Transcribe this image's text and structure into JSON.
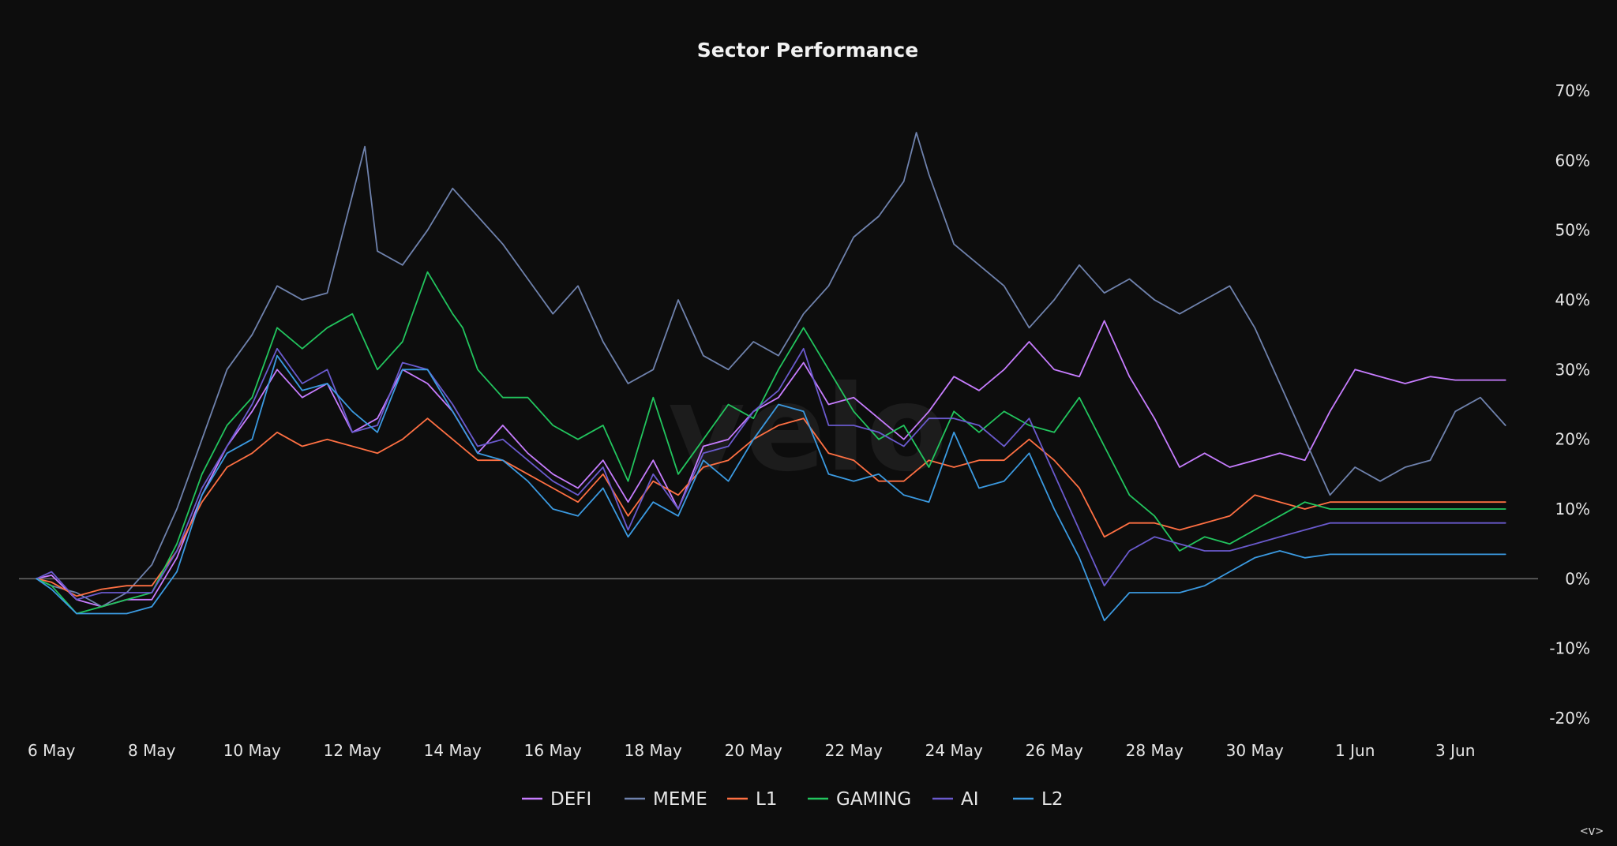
{
  "chart_data": {
    "type": "line",
    "title": "Sector Performance",
    "xlabel": "",
    "ylabel": "",
    "y_axis_position": "right",
    "ylim": [
      -20,
      70
    ],
    "yticks": [
      -20,
      -10,
      0,
      10,
      20,
      30,
      40,
      50,
      60,
      70
    ],
    "ytick_labels": [
      "-20%",
      "-10%",
      "0%",
      "10%",
      "20%",
      "30%",
      "40%",
      "50%",
      "60%",
      "70%"
    ],
    "xlim": [
      5.35,
      35.65
    ],
    "xticks": [
      6,
      8,
      10,
      12,
      14,
      16,
      18,
      20,
      22,
      24,
      26,
      28,
      30,
      32,
      34
    ],
    "xtick_labels": [
      "6 May",
      "8 May",
      "10 May",
      "12 May",
      "14 May",
      "16 May",
      "18 May",
      "20 May",
      "22 May",
      "24 May",
      "26 May",
      "28 May",
      "30 May",
      "1 Jun",
      "3 Jun"
    ],
    "grid": false,
    "zero_line": true,
    "legend_position": "bottom-center",
    "watermark": "velo",
    "series": [
      {
        "name": "DEFI",
        "color": "#c77dff",
        "x": [
          5.7,
          6.0,
          6.5,
          7.0,
          7.5,
          8.0,
          8.5,
          9.0,
          9.5,
          10.0,
          10.5,
          11.0,
          11.5,
          12.0,
          12.5,
          13.0,
          13.5,
          14.0,
          14.5,
          15.0,
          15.5,
          16.0,
          16.5,
          17.0,
          17.5,
          18.0,
          18.5,
          19.0,
          19.5,
          20.0,
          20.5,
          21.0,
          21.5,
          22.0,
          22.5,
          23.0,
          23.5,
          24.0,
          24.5,
          25.0,
          25.5,
          26.0,
          26.5,
          27.0,
          27.5,
          28.0,
          28.5,
          29.0,
          29.5,
          30.0,
          30.5,
          31.0,
          31.5,
          32.0,
          32.5,
          33.0,
          33.5,
          34.0,
          34.5,
          35.0
        ],
        "values": [
          0,
          0.5,
          -3,
          -4,
          -3,
          -3,
          3,
          12,
          19,
          24,
          30,
          26,
          28,
          21,
          23,
          30,
          28,
          24,
          18,
          22,
          18,
          15,
          13,
          17,
          11,
          17,
          10,
          19,
          20,
          24,
          26,
          31,
          25,
          26,
          23,
          20,
          24,
          29,
          27,
          30,
          34,
          30,
          29,
          37,
          29,
          23,
          16,
          18,
          16,
          17,
          18,
          17,
          24,
          30,
          29,
          28,
          29,
          28.5,
          28.5,
          28.5
        ]
      },
      {
        "name": "MEME",
        "color": "#6f82ad",
        "x": [
          5.7,
          6.0,
          6.5,
          7.0,
          7.5,
          8.0,
          8.5,
          9.0,
          9.5,
          10.0,
          10.5,
          11.0,
          11.5,
          12.0,
          12.25,
          12.5,
          13.0,
          13.5,
          14.0,
          14.25,
          14.5,
          15.0,
          15.5,
          16.0,
          16.5,
          17.0,
          17.5,
          18.0,
          18.5,
          19.0,
          19.5,
          20.0,
          20.5,
          21.0,
          21.5,
          22.0,
          22.5,
          23.0,
          23.25,
          23.5,
          24.0,
          24.5,
          25.0,
          25.5,
          26.0,
          26.5,
          27.0,
          27.5,
          28.0,
          28.5,
          29.0,
          29.5,
          30.0,
          30.5,
          31.0,
          31.5,
          32.0,
          32.5,
          33.0,
          33.5,
          34.0,
          34.5,
          35.0
        ],
        "values": [
          0,
          -1,
          -2,
          -4,
          -2,
          2,
          10,
          20,
          30,
          35,
          42,
          40,
          41,
          55,
          62,
          47,
          45,
          50,
          56,
          54,
          52,
          48,
          43,
          38,
          42,
          34,
          28,
          30,
          40,
          32,
          30,
          34,
          32,
          38,
          42,
          49,
          52,
          57,
          64,
          58,
          48,
          45,
          42,
          36,
          40,
          45,
          41,
          43,
          40,
          38,
          40,
          42,
          36,
          28,
          20,
          12,
          16,
          14,
          16,
          17,
          24,
          26,
          22
        ]
      },
      {
        "name": "L1",
        "color": "#ff7043",
        "x": [
          5.7,
          6.0,
          6.5,
          7.0,
          7.5,
          8.0,
          8.5,
          9.0,
          9.5,
          10.0,
          10.5,
          11.0,
          11.5,
          12.0,
          12.5,
          13.0,
          13.5,
          14.0,
          14.5,
          15.0,
          15.5,
          16.0,
          16.5,
          17.0,
          17.5,
          18.0,
          18.5,
          19.0,
          19.5,
          20.0,
          20.5,
          21.0,
          21.5,
          22.0,
          22.5,
          23.0,
          23.5,
          24.0,
          24.5,
          25.0,
          25.5,
          26.0,
          26.5,
          27.0,
          27.5,
          28.0,
          28.5,
          29.0,
          29.5,
          30.0,
          30.5,
          31.0,
          31.5,
          32.0,
          32.5,
          33.0,
          33.5,
          34.0,
          34.5,
          35.0
        ],
        "values": [
          0,
          -0.5,
          -2.5,
          -1.5,
          -1,
          -1,
          4,
          11,
          16,
          18,
          21,
          19,
          20,
          19,
          18,
          20,
          23,
          20,
          17,
          17,
          15,
          13,
          11,
          15,
          9,
          14,
          12,
          16,
          17,
          20,
          22,
          23,
          18,
          17,
          14,
          14,
          17,
          16,
          17,
          17,
          20,
          17,
          13,
          6,
          8,
          8,
          7,
          8,
          9,
          12,
          11,
          10,
          11,
          11,
          11,
          11,
          11,
          11,
          11,
          11
        ]
      },
      {
        "name": "GAMING",
        "color": "#22c55e",
        "x": [
          5.7,
          6.0,
          6.5,
          7.0,
          7.5,
          8.0,
          8.5,
          9.0,
          9.5,
          10.0,
          10.5,
          11.0,
          11.5,
          12.0,
          12.5,
          13.0,
          13.5,
          14.0,
          14.2,
          14.5,
          15.0,
          15.5,
          16.0,
          16.5,
          17.0,
          17.5,
          18.0,
          18.5,
          19.0,
          19.5,
          20.0,
          20.5,
          21.0,
          21.5,
          22.0,
          22.5,
          23.0,
          23.5,
          24.0,
          24.5,
          25.0,
          25.5,
          26.0,
          26.5,
          27.0,
          27.5,
          28.0,
          28.5,
          29.0,
          29.5,
          30.0,
          30.5,
          31.0,
          31.5,
          32.0,
          32.5,
          33.0,
          33.5,
          34.0,
          34.5,
          35.0
        ],
        "values": [
          0,
          -1,
          -5,
          -4,
          -3,
          -2,
          5,
          15,
          22,
          26,
          36,
          33,
          36,
          38,
          30,
          34,
          44,
          38,
          36,
          30,
          26,
          26,
          22,
          20,
          22,
          14,
          26,
          15,
          20,
          25,
          23,
          30,
          36,
          30,
          24,
          20,
          22,
          16,
          24,
          21,
          24,
          22,
          21,
          26,
          19,
          12,
          9,
          4,
          6,
          5,
          7,
          9,
          11,
          10,
          10,
          10,
          10,
          10,
          10,
          10,
          10
        ]
      },
      {
        "name": "AI",
        "color": "#6a5acd",
        "x": [
          5.7,
          6.0,
          6.5,
          7.0,
          7.5,
          8.0,
          8.5,
          9.0,
          9.5,
          10.0,
          10.5,
          11.0,
          11.5,
          12.0,
          12.5,
          13.0,
          13.5,
          14.0,
          14.5,
          15.0,
          15.5,
          16.0,
          16.5,
          17.0,
          17.5,
          18.0,
          18.5,
          19.0,
          19.5,
          20.0,
          20.5,
          21.0,
          21.5,
          22.0,
          22.5,
          23.0,
          23.5,
          24.0,
          24.5,
          25.0,
          25.5,
          26.0,
          26.5,
          27.0,
          27.5,
          28.0,
          28.5,
          29.0,
          29.5,
          30.0,
          30.5,
          31.0,
          31.5,
          32.0,
          32.5,
          33.0,
          33.5,
          34.0,
          34.5,
          35.0
        ],
        "values": [
          0,
          1,
          -3,
          -2,
          -2,
          -2,
          4,
          13,
          19,
          25,
          33,
          28,
          30,
          21,
          22,
          31,
          30,
          25,
          19,
          20,
          17,
          14,
          12,
          16,
          7,
          15,
          10,
          18,
          19,
          24,
          27,
          33,
          22,
          22,
          21,
          19,
          23,
          23,
          22,
          19,
          23,
          15,
          7,
          -1,
          4,
          6,
          5,
          4,
          4,
          5,
          6,
          7,
          8,
          8,
          8,
          8,
          8,
          8,
          8,
          8
        ]
      },
      {
        "name": "L2",
        "color": "#3b9ae1",
        "x": [
          5.7,
          6.0,
          6.5,
          7.0,
          7.5,
          8.0,
          8.5,
          9.0,
          9.5,
          10.0,
          10.5,
          11.0,
          11.5,
          12.0,
          12.5,
          13.0,
          13.5,
          14.0,
          14.5,
          15.0,
          15.5,
          16.0,
          16.5,
          17.0,
          17.5,
          18.0,
          18.5,
          19.0,
          19.5,
          20.0,
          20.5,
          21.0,
          21.5,
          22.0,
          22.5,
          23.0,
          23.5,
          24.0,
          24.5,
          25.0,
          25.5,
          26.0,
          26.5,
          27.0,
          27.5,
          28.0,
          28.5,
          29.0,
          29.5,
          30.0,
          30.5,
          31.0,
          31.5,
          32.0,
          32.5,
          33.0,
          33.5,
          34.0,
          34.5,
          35.0
        ],
        "values": [
          0,
          -1.5,
          -5,
          -5,
          -5,
          -4,
          1,
          12,
          18,
          20,
          32,
          27,
          28,
          24,
          21,
          30,
          30,
          24,
          18,
          17,
          14,
          10,
          9,
          13,
          6,
          11,
          9,
          17,
          14,
          20,
          25,
          24,
          15,
          14,
          15,
          12,
          11,
          21,
          13,
          14,
          18,
          10,
          3,
          -6,
          -2,
          -2,
          -2,
          -1,
          1,
          3,
          4,
          3,
          3.5,
          3.5,
          3.5,
          3.5,
          3.5,
          3.5,
          3.5,
          3.5
        ]
      }
    ]
  },
  "corner_control": "<v>"
}
